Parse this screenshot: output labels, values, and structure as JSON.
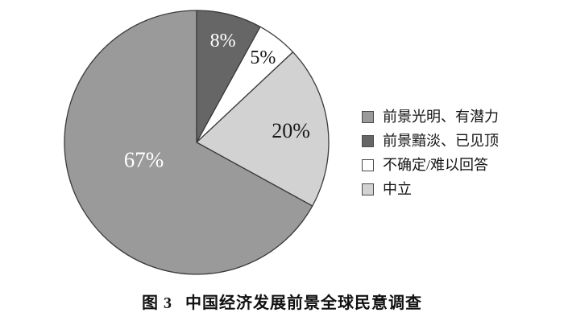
{
  "figure": {
    "caption": {
      "label": "图 3",
      "title": "中国经济发展前景全球民意调查"
    }
  },
  "chart_data": {
    "type": "pie",
    "title": "图 3 中国经济发展前景全球民意调查",
    "background": "#ffffff",
    "outline_color": "#3a3a3a",
    "start_angle_deg": 0,
    "direction": "clockwise",
    "slices": [
      {
        "key": "dim-peaked",
        "label": "前景黯淡、已见顶",
        "value": 8,
        "pct_label": "8%",
        "color": "#666666",
        "label_color": "#ffffff"
      },
      {
        "key": "uncertain",
        "label": "不确定/难以回答",
        "value": 5,
        "pct_label": "5%",
        "color": "#ffffff",
        "label_color": "#1a1a1a"
      },
      {
        "key": "neutral",
        "label": "中立",
        "value": 20,
        "pct_label": "20%",
        "color": "#d2d2d2",
        "label_color": "#1a1a1a"
      },
      {
        "key": "bright-potential",
        "label": "前景光明、有潜力",
        "value": 67,
        "pct_label": "67%",
        "color": "#9a9a9a",
        "label_color": "#ffffff"
      }
    ],
    "legend": {
      "position": "right",
      "items": [
        {
          "label": "前景光明、有潜力",
          "color": "#9a9a9a"
        },
        {
          "label": "前景黯淡、已见顶",
          "color": "#666666"
        },
        {
          "label": "不确定/难以回答",
          "color": "#ffffff"
        },
        {
          "label": "中立",
          "color": "#d2d2d2"
        }
      ]
    }
  }
}
